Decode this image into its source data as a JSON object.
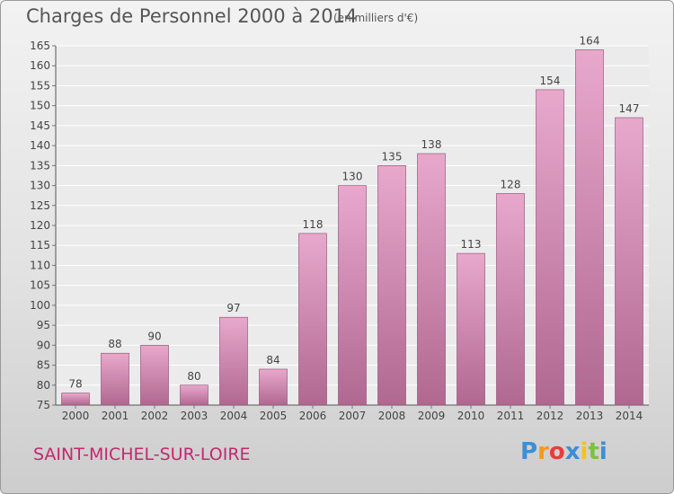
{
  "title": "Charges de Personnel 2000 à 2014",
  "unit": "(en milliers d'€)",
  "commune": "SAINT-MICHEL-SUR-LOIRE",
  "logo": {
    "letters": [
      "P",
      "r",
      "o",
      "x",
      "i",
      "t",
      "i"
    ],
    "colors": [
      "#3b8fd6",
      "#f29a1e",
      "#e83c3c",
      "#3b8fd6",
      "#f2c21e",
      "#7cc242",
      "#3b8fd6"
    ]
  },
  "colors": {
    "bar_light": "#e8a8cc",
    "bar_dark": "#b06890",
    "commune": "#c4276f"
  },
  "chart_data": {
    "type": "bar",
    "categories": [
      "2000",
      "2001",
      "2002",
      "2003",
      "2004",
      "2005",
      "2006",
      "2007",
      "2008",
      "2009",
      "2010",
      "2011",
      "2012",
      "2013",
      "2014"
    ],
    "values": [
      78,
      88,
      90,
      80,
      97,
      84,
      118,
      130,
      135,
      138,
      113,
      128,
      154,
      164,
      147
    ],
    "ylim": [
      75,
      165
    ],
    "ytick_step": 5,
    "grid": true
  }
}
